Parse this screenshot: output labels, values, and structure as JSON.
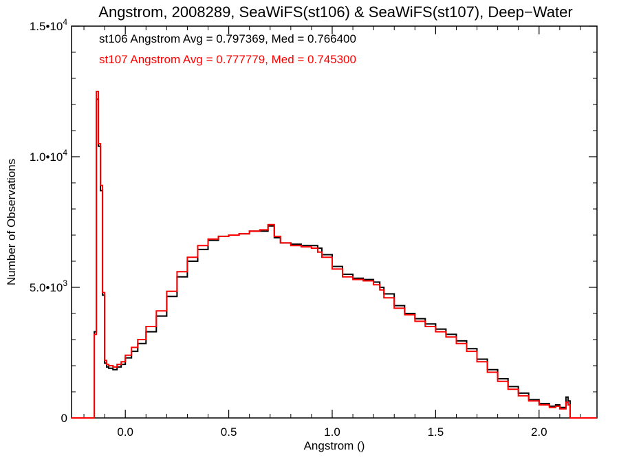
{
  "chart_data": {
    "type": "line",
    "title": "Angstrom, 2008289, SeaWiFS(st106) & SeaWiFS(st107), Deep−Water",
    "xlabel": "Angstrom ()",
    "ylabel": "Number of Observations",
    "xlim": [
      -0.26,
      2.28
    ],
    "ylim": [
      0,
      15000
    ],
    "x_ticks": [
      {
        "value": 0.0,
        "label": "0.0"
      },
      {
        "value": 0.5,
        "label": "0.5"
      },
      {
        "value": 1.0,
        "label": "1.0"
      },
      {
        "value": 1.5,
        "label": "1.5"
      },
      {
        "value": 2.0,
        "label": "2.0"
      }
    ],
    "y_ticks": [
      {
        "value": 0,
        "mantissa": "0",
        "exponent": ""
      },
      {
        "value": 5000,
        "mantissa": "5.0•10",
        "exponent": "3"
      },
      {
        "value": 10000,
        "mantissa": "1.0•10",
        "exponent": "4"
      },
      {
        "value": 15000,
        "mantissa": "1.5•10",
        "exponent": "4"
      }
    ],
    "annotations": [
      {
        "text": "st106 Angstrom Avg = 0.797369, Med = 0.766400",
        "color": "#000000"
      },
      {
        "text": "st107 Angstrom Avg = 0.777779, Med = 0.745300",
        "color": "#ff0000"
      }
    ],
    "series": [
      {
        "color": "#000000",
        "style": "step",
        "x": [
          -0.26,
          -0.15,
          -0.14,
          -0.13,
          -0.12,
          -0.11,
          -0.1,
          -0.09,
          -0.08,
          -0.06,
          -0.04,
          -0.02,
          0.0,
          0.03,
          0.06,
          0.1,
          0.15,
          0.2,
          0.25,
          0.3,
          0.35,
          0.4,
          0.45,
          0.5,
          0.55,
          0.6,
          0.65,
          0.69,
          0.72,
          0.75,
          0.8,
          0.85,
          0.9,
          0.93,
          0.95,
          1.0,
          1.05,
          1.1,
          1.15,
          1.2,
          1.23,
          1.25,
          1.3,
          1.35,
          1.4,
          1.45,
          1.5,
          1.55,
          1.6,
          1.65,
          1.7,
          1.75,
          1.8,
          1.85,
          1.9,
          1.95,
          2.0,
          2.05,
          2.08,
          2.1,
          2.13,
          2.14,
          2.15,
          2.28
        ],
        "y": [
          0,
          3300,
          12200,
          10400,
          8700,
          4700,
          2100,
          1950,
          1900,
          1850,
          1950,
          2050,
          2300,
          2550,
          2850,
          3300,
          3900,
          4650,
          5400,
          6000,
          6450,
          6800,
          6950,
          7000,
          7050,
          7150,
          7150,
          7350,
          6900,
          6700,
          6650,
          6600,
          6600,
          6500,
          6250,
          5800,
          5500,
          5350,
          5300,
          5200,
          5000,
          4750,
          4300,
          4000,
          3800,
          3600,
          3400,
          3200,
          2950,
          2650,
          2250,
          1850,
          1500,
          1200,
          950,
          700,
          550,
          450,
          500,
          400,
          800,
          650,
          0,
          0
        ]
      },
      {
        "color": "#ff0000",
        "style": "step",
        "x": [
          -0.26,
          -0.15,
          -0.14,
          -0.13,
          -0.12,
          -0.11,
          -0.1,
          -0.09,
          -0.08,
          -0.06,
          -0.04,
          -0.02,
          0.0,
          0.03,
          0.06,
          0.1,
          0.15,
          0.2,
          0.25,
          0.3,
          0.35,
          0.4,
          0.45,
          0.5,
          0.55,
          0.6,
          0.65,
          0.69,
          0.72,
          0.75,
          0.8,
          0.85,
          0.9,
          0.93,
          0.95,
          1.0,
          1.05,
          1.1,
          1.15,
          1.2,
          1.23,
          1.25,
          1.3,
          1.35,
          1.4,
          1.45,
          1.5,
          1.55,
          1.6,
          1.65,
          1.7,
          1.75,
          1.8,
          1.85,
          1.9,
          1.95,
          2.0,
          2.05,
          2.08,
          2.1,
          2.13,
          2.14,
          2.15,
          2.28
        ],
        "y": [
          0,
          3200,
          12500,
          10500,
          8900,
          4800,
          2200,
          2050,
          2000,
          1950,
          2050,
          2150,
          2400,
          2700,
          3000,
          3500,
          4100,
          4850,
          5600,
          6150,
          6600,
          6850,
          6950,
          7000,
          7050,
          7150,
          7200,
          7400,
          6950,
          6700,
          6600,
          6550,
          6500,
          6350,
          6150,
          5700,
          5400,
          5300,
          5250,
          5100,
          4900,
          4600,
          4200,
          3950,
          3700,
          3500,
          3300,
          3100,
          2850,
          2550,
          2150,
          1750,
          1400,
          1100,
          850,
          650,
          500,
          400,
          450,
          350,
          600,
          500,
          0,
          0
        ]
      }
    ]
  }
}
